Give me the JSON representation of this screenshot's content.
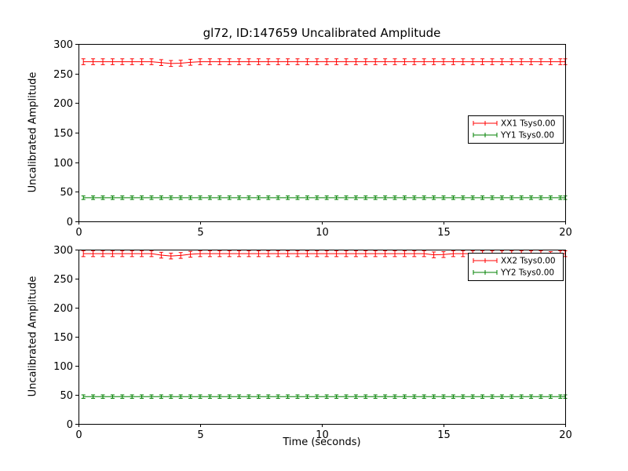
{
  "figure": {
    "background": "#ffffff",
    "axis_color": "#000000"
  },
  "chart_data": [
    {
      "type": "line",
      "title": "gl72, ID:147659 Uncalibrated Amplitude",
      "xlabel": "",
      "ylabel": "Uncalibrated Amplitude",
      "xlim": [
        0,
        20
      ],
      "ylim": [
        0,
        300
      ],
      "xticks": [
        0,
        5,
        10,
        15,
        20
      ],
      "yticks": [
        0,
        50,
        100,
        150,
        200,
        250,
        300
      ],
      "grid": false,
      "legend_position": "center right",
      "x": [
        0.2,
        0.6,
        1.0,
        1.4,
        1.8,
        2.2,
        2.6,
        3.0,
        3.4,
        3.8,
        4.2,
        4.6,
        5.0,
        5.4,
        5.8,
        6.2,
        6.6,
        7.0,
        7.4,
        7.8,
        8.2,
        8.6,
        9.0,
        9.4,
        9.8,
        10.2,
        10.6,
        11.0,
        11.4,
        11.8,
        12.2,
        12.6,
        13.0,
        13.4,
        13.8,
        14.2,
        14.6,
        15.0,
        15.4,
        15.8,
        16.2,
        16.6,
        17.0,
        17.4,
        17.8,
        18.2,
        18.6,
        19.0,
        19.4,
        19.8,
        20.0
      ],
      "series": [
        {
          "name": "XX1 Tsys0.00",
          "color": "#ff0000",
          "yerr": 5,
          "values": [
            270,
            270,
            270,
            270,
            270,
            270,
            270,
            270,
            268.5,
            267,
            267.5,
            269,
            270,
            270,
            270,
            270,
            270,
            270,
            270,
            270,
            270,
            270,
            270,
            270,
            270,
            270,
            270,
            270,
            270,
            270,
            270,
            270,
            270,
            270,
            270,
            270,
            270,
            270,
            270,
            270,
            270,
            270,
            270,
            270,
            270,
            270,
            270,
            270,
            270,
            270,
            270
          ]
        },
        {
          "name": "YY1 Tsys0.00",
          "color": "#008000",
          "yerr": 3,
          "values": [
            40,
            40,
            40,
            40,
            40,
            40,
            40,
            40,
            40,
            40,
            40,
            40,
            40,
            40,
            40,
            40,
            40,
            40,
            40,
            40,
            40,
            40,
            40,
            40,
            40,
            40,
            40,
            40,
            40,
            40,
            40,
            40,
            40,
            40,
            40,
            40,
            40,
            40,
            40,
            40,
            40,
            40,
            40,
            40,
            40,
            40,
            40,
            40,
            40,
            40,
            40
          ]
        }
      ]
    },
    {
      "type": "line",
      "title": "",
      "xlabel": "Time (seconds)",
      "ylabel": "Uncalibrated Amplitude",
      "xlim": [
        0,
        20
      ],
      "ylim": [
        0,
        300
      ],
      "xticks": [
        0,
        5,
        10,
        15,
        20
      ],
      "yticks": [
        0,
        50,
        100,
        150,
        200,
        250,
        300
      ],
      "grid": false,
      "legend_position": "upper right",
      "x": [
        0.2,
        0.6,
        1.0,
        1.4,
        1.8,
        2.2,
        2.6,
        3.0,
        3.4,
        3.8,
        4.2,
        4.6,
        5.0,
        5.4,
        5.8,
        6.2,
        6.6,
        7.0,
        7.4,
        7.8,
        8.2,
        8.6,
        9.0,
        9.4,
        9.8,
        10.2,
        10.6,
        11.0,
        11.4,
        11.8,
        12.2,
        12.6,
        13.0,
        13.4,
        13.8,
        14.2,
        14.6,
        15.0,
        15.4,
        15.8,
        16.2,
        16.6,
        17.0,
        17.4,
        17.8,
        18.2,
        18.6,
        19.0,
        19.4,
        19.8,
        20.0
      ],
      "series": [
        {
          "name": "XX2 Tsys0.00",
          "color": "#ff0000",
          "yerr": 5,
          "values": [
            293,
            293,
            293,
            293,
            293,
            293,
            293,
            293,
            290.5,
            289,
            290,
            292,
            293,
            293,
            293,
            293,
            293,
            293,
            293,
            293,
            293,
            293,
            293,
            293,
            293,
            293,
            293,
            293,
            293,
            293,
            293,
            293,
            293,
            293,
            293,
            293,
            291,
            291.5,
            293,
            293,
            293,
            293,
            293,
            293,
            293,
            293,
            293,
            293,
            291.5,
            293,
            293
          ]
        },
        {
          "name": "YY2 Tsys0.00",
          "color": "#008000",
          "yerr": 3,
          "values": [
            47,
            47,
            47,
            47,
            47,
            47,
            47,
            47,
            47,
            47,
            47,
            47,
            47,
            47,
            47,
            47,
            47,
            47,
            47,
            47,
            47,
            47,
            47,
            47,
            47,
            47,
            47,
            47,
            47,
            47,
            47,
            47,
            47,
            47,
            47,
            47,
            47,
            47,
            47,
            47,
            47,
            47,
            47,
            47,
            47,
            47,
            47,
            47,
            47,
            47,
            47
          ]
        }
      ]
    }
  ]
}
